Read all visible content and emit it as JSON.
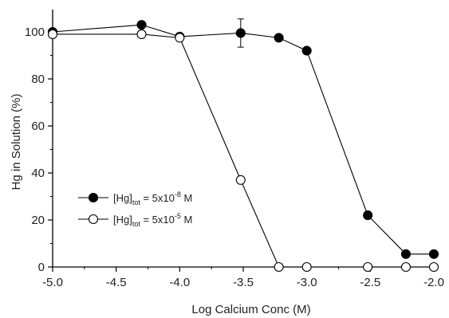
{
  "chart_data": {
    "type": "line",
    "xlabel": "Log Calcium Conc (M)",
    "ylabel": "Hg in Solution (%)",
    "xlim": [
      -5.0,
      -2.0
    ],
    "ylim": [
      0,
      110
    ],
    "x_ticks": [
      "-5.0",
      "-4.5",
      "-4.0",
      "-3.5",
      "-3.0",
      "-2.5",
      "-2.0"
    ],
    "y_ticks": [
      "0",
      "20",
      "40",
      "60",
      "80",
      "100"
    ],
    "grid": false,
    "legend_position": "lower-left",
    "series": [
      {
        "legend": {
          "prefix": "[Hg]",
          "sub": "tot",
          "mid": " = 5x10",
          "sup": "-8",
          "suffix": " M"
        },
        "marker": "filled-circle",
        "x": [
          -5.0,
          -4.3,
          -4.0,
          -3.52,
          -3.22,
          -3.0,
          -2.52,
          -2.22,
          -2.0
        ],
        "y": [
          100,
          103,
          98,
          99.5,
          97.5,
          92,
          22,
          5.5,
          5.5
        ],
        "error": [
          null,
          null,
          null,
          6,
          null,
          null,
          1.5,
          null,
          null
        ]
      },
      {
        "legend": {
          "prefix": "[Hg]",
          "sub": "tot",
          "mid": " = 5x10",
          "sup": "-5",
          "suffix": " M"
        },
        "marker": "open-circle",
        "x": [
          -5.0,
          -4.3,
          -4.0,
          -3.52,
          -3.22,
          -3.0,
          -2.52,
          -2.22,
          -2.0
        ],
        "y": [
          99,
          99,
          97.5,
          37,
          0,
          0,
          0,
          0,
          0
        ],
        "error": [
          null,
          null,
          null,
          null,
          null,
          null,
          null,
          null,
          null
        ]
      }
    ]
  }
}
